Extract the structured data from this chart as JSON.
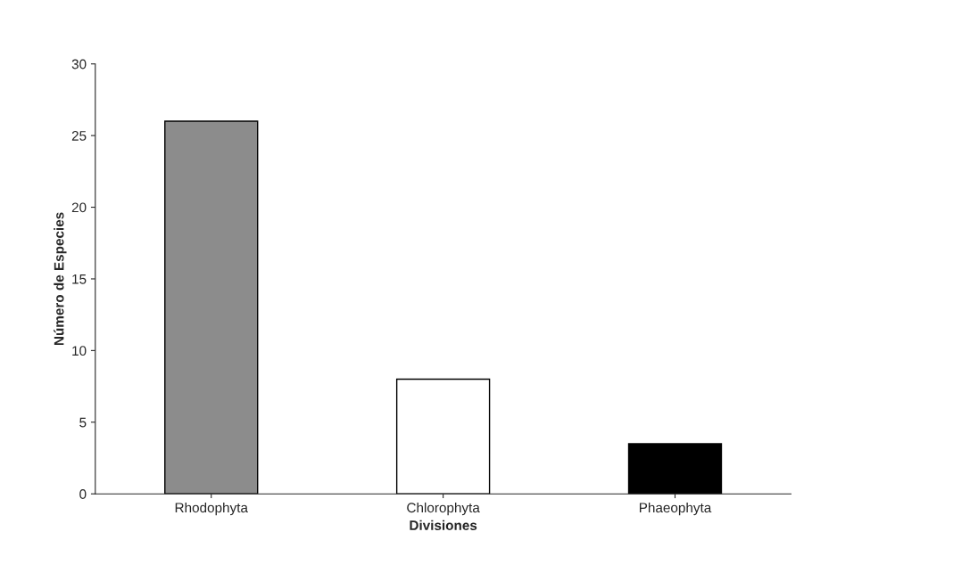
{
  "chart_data": {
    "type": "bar",
    "xlabel": "Divisiones",
    "ylabel": "Número de Especies",
    "categories": [
      "Rhodophyta",
      "Chlorophyta",
      "Phaeophyta"
    ],
    "values": [
      26,
      8,
      3.5
    ],
    "colors": [
      "#8c8c8c",
      "#ffffff",
      "#000000"
    ],
    "ylim": [
      0,
      30
    ],
    "yticks": [
      0,
      5,
      10,
      15,
      20,
      25,
      30
    ],
    "grid": false,
    "legend": false
  }
}
